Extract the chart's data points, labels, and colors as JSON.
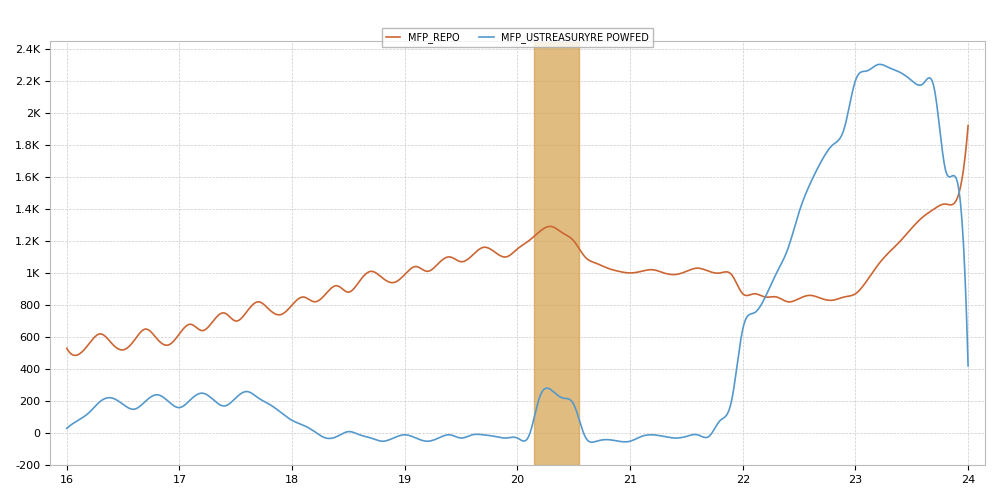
{
  "title": "",
  "xlabel": "",
  "ylabel": "",
  "xlim": [
    15.85,
    24.15
  ],
  "ylim": [
    -200,
    2450
  ],
  "yticks": [
    -200,
    0,
    200,
    400,
    600,
    800,
    1000,
    1200,
    1400,
    1600,
    1800,
    2000,
    2200,
    2400
  ],
  "ytick_labels": [
    "-200",
    "0",
    "200",
    "400",
    "600",
    "800",
    "1K",
    "1.2K",
    "1.4K",
    "1.6K",
    "1.8K",
    "2K",
    "2.2K",
    "2.4K"
  ],
  "xticks": [
    16,
    17,
    18,
    19,
    20,
    21,
    22,
    23,
    24
  ],
  "xtick_labels": [
    "16",
    "17",
    "18",
    "19",
    "20",
    "21",
    "22",
    "23",
    "24"
  ],
  "background_color": "#ffffff",
  "grid_color": "#cccccc",
  "shade_xmin": 20.15,
  "shade_xmax": 20.55,
  "shade_color": "#d4a04a",
  "shade_alpha": 0.7,
  "legend_labels": [
    "MFP_REPO",
    "MFP_USTREASURYRE POWFED"
  ],
  "orange_color": "#cc6633",
  "blue_color": "#5599cc",
  "orange_x": [
    16.0,
    16.1,
    16.2,
    16.3,
    16.4,
    16.5,
    16.6,
    16.7,
    16.8,
    16.9,
    17.0,
    17.1,
    17.2,
    17.3,
    17.4,
    17.5,
    17.6,
    17.7,
    17.8,
    17.9,
    18.0,
    18.1,
    18.2,
    18.3,
    18.4,
    18.5,
    18.6,
    18.7,
    18.8,
    18.9,
    19.0,
    19.1,
    19.2,
    19.3,
    19.4,
    19.5,
    19.6,
    19.7,
    19.8,
    19.9,
    20.0,
    20.1,
    20.2,
    20.3,
    20.4,
    20.5,
    20.6,
    20.7,
    20.8,
    20.9,
    21.0,
    21.1,
    21.2,
    21.3,
    21.4,
    21.5,
    21.6,
    21.7,
    21.8,
    21.9,
    22.0,
    22.1,
    22.2,
    22.3,
    22.4,
    22.5,
    22.6,
    22.7,
    22.8,
    22.9,
    23.0,
    23.1,
    23.2,
    23.3,
    23.4,
    23.5,
    23.6,
    23.7,
    23.8,
    23.9,
    24.0
  ],
  "orange_y": [
    530,
    490,
    560,
    620,
    560,
    520,
    580,
    650,
    590,
    550,
    620,
    680,
    640,
    700,
    750,
    700,
    760,
    820,
    770,
    740,
    800,
    850,
    820,
    870,
    920,
    880,
    950,
    1010,
    970,
    940,
    990,
    1040,
    1010,
    1060,
    1100,
    1070,
    1110,
    1160,
    1130,
    1100,
    1150,
    1200,
    1260,
    1290,
    1250,
    1200,
    1100,
    1060,
    1030,
    1010,
    1000,
    1010,
    1020,
    1000,
    990,
    1010,
    1030,
    1010,
    1000,
    990,
    870,
    870,
    850,
    850,
    820,
    840,
    860,
    840,
    830,
    850,
    870,
    950,
    1050,
    1130,
    1200,
    1280,
    1350,
    1400,
    1430,
    1460,
    1920
  ],
  "blue_x": [
    16.0,
    16.1,
    16.2,
    16.3,
    16.4,
    16.5,
    16.6,
    16.7,
    16.8,
    16.9,
    17.0,
    17.1,
    17.2,
    17.3,
    17.4,
    17.5,
    17.6,
    17.7,
    17.8,
    17.9,
    18.0,
    18.1,
    18.2,
    18.3,
    18.4,
    18.5,
    18.6,
    18.7,
    18.8,
    18.9,
    19.0,
    19.1,
    19.2,
    19.3,
    19.4,
    19.5,
    19.6,
    19.7,
    19.8,
    19.9,
    20.0,
    20.1,
    20.2,
    20.3,
    20.4,
    20.5,
    20.6,
    20.7,
    20.8,
    20.9,
    21.0,
    21.1,
    21.2,
    21.3,
    21.4,
    21.5,
    21.6,
    21.7,
    21.8,
    21.9,
    22.0,
    22.1,
    22.2,
    22.3,
    22.4,
    22.5,
    22.6,
    22.7,
    22.8,
    22.9,
    23.0,
    23.1,
    23.2,
    23.3,
    23.4,
    23.5,
    23.6,
    23.7,
    23.8,
    23.9,
    24.0
  ],
  "blue_y": [
    30,
    80,
    130,
    200,
    220,
    180,
    150,
    200,
    240,
    200,
    160,
    210,
    250,
    210,
    170,
    220,
    260,
    220,
    180,
    130,
    80,
    50,
    10,
    -30,
    -20,
    10,
    -10,
    -30,
    -50,
    -30,
    -10,
    -30,
    -50,
    -30,
    -10,
    -30,
    -10,
    -10,
    -20,
    -30,
    -30,
    -20,
    230,
    270,
    220,
    180,
    -20,
    -50,
    -40,
    -50,
    -50,
    -20,
    -10,
    -20,
    -30,
    -20,
    -10,
    -20,
    80,
    200,
    650,
    750,
    850,
    1000,
    1150,
    1380,
    1560,
    1700,
    1800,
    1900,
    2200,
    2260,
    2300,
    2280,
    2250,
    2200,
    2180,
    2150,
    1640,
    1580,
    420
  ]
}
